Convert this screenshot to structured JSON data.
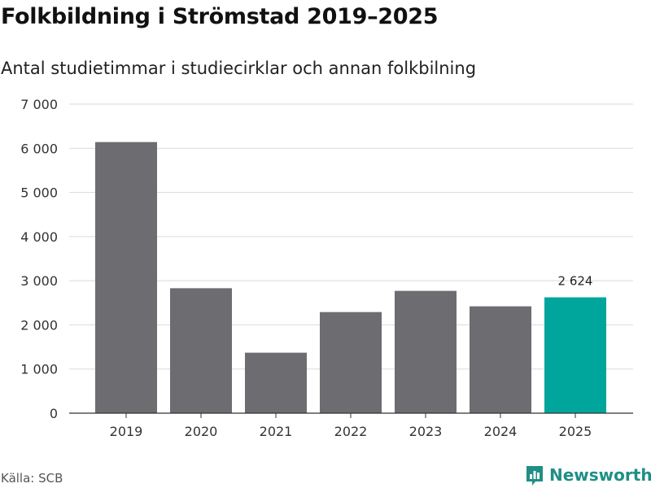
{
  "header": {
    "title": "Folkbildning i Strömstad 2019–2025",
    "subtitle": "Antal studietimmar i studiecirklar och annan folkbilning"
  },
  "footer": {
    "source": "Källa: SCB",
    "brand": "Newsworthy"
  },
  "colors": {
    "bar": "#6d6c71",
    "highlight": "#00a69c",
    "grid": "#d9d9d9",
    "axis": "#333333"
  },
  "chart_data": {
    "type": "bar",
    "title": "Folkbildning i Strömstad 2019–2025",
    "subtitle": "Antal studietimmar i studiecirklar och annan folkbilning",
    "xlabel": "",
    "ylabel": "",
    "categories": [
      "2019",
      "2020",
      "2021",
      "2022",
      "2023",
      "2024",
      "2025"
    ],
    "values": [
      6140,
      2830,
      1370,
      2290,
      2770,
      2420,
      2624
    ],
    "ylim": [
      0,
      7000
    ],
    "yticks": [
      0,
      1000,
      2000,
      3000,
      4000,
      5000,
      6000,
      7000
    ],
    "ytick_labels": [
      "0",
      "1 000",
      "2 000",
      "3 000",
      "4 000",
      "5 000",
      "6 000",
      "7 000"
    ],
    "highlight_index": 6,
    "data_labels": [
      {
        "index": 6,
        "text": "2 624"
      }
    ],
    "grid": true
  }
}
